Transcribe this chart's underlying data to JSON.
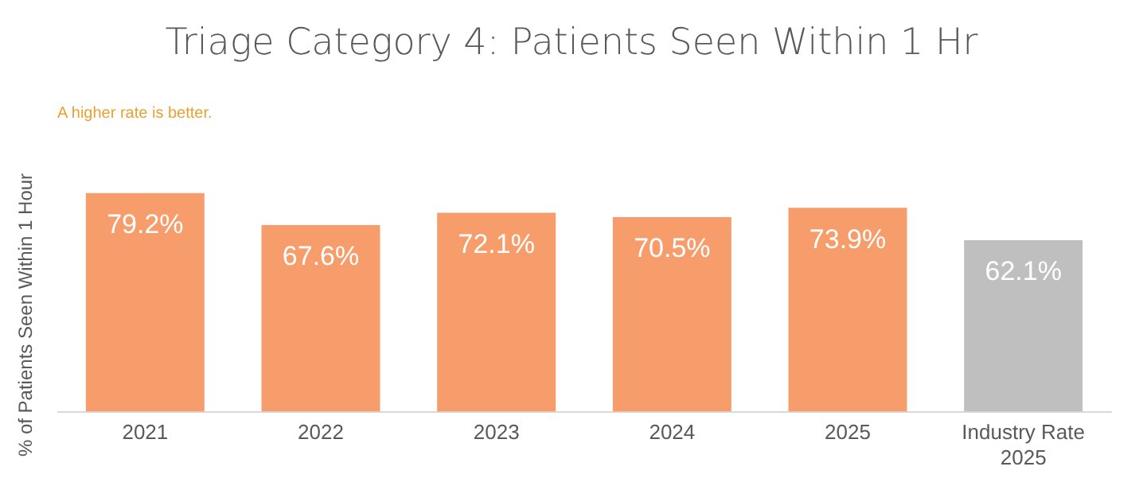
{
  "chart_data": {
    "type": "bar",
    "title": "Triage Category 4: Patients Seen Within 1 Hr",
    "ylabel": "% of Patients Seen Within 1 Hour",
    "annotations": [
      "A higher rate is better."
    ],
    "categories": [
      "2021",
      "2022",
      "2023",
      "2024",
      "2025",
      "Industry Rate 2025"
    ],
    "values": [
      79.2,
      67.6,
      72.1,
      70.5,
      73.9,
      62.1
    ],
    "colors": [
      "#f79c6b",
      "#f79c6b",
      "#f79c6b",
      "#f79c6b",
      "#f79c6b",
      "#bfbfbf"
    ],
    "value_labels": [
      "79.2%",
      "67.6%",
      "72.1%",
      "70.5%",
      "73.9%",
      "62.1%"
    ],
    "grid": false,
    "legend": false
  }
}
